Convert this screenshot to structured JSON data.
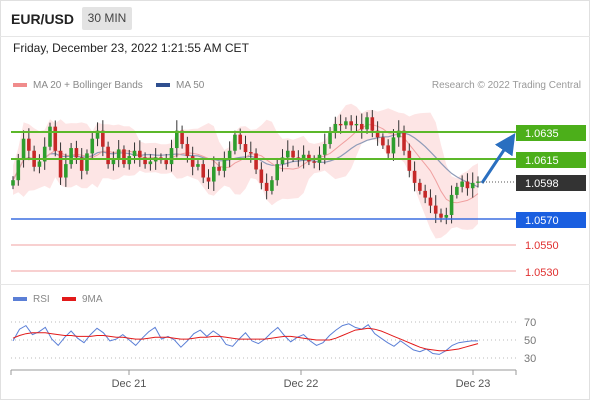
{
  "header": {
    "symbol": "EUR/USD",
    "timeframe": "30 MIN"
  },
  "date": "Friday, December 23, 2022 1:21:55 AM CET",
  "legend": {
    "items": [
      {
        "label": "MA 20 + Bollinger Bands",
        "color": "#f08c8c"
      },
      {
        "label": "MA 50",
        "color": "#2f4f8f"
      }
    ],
    "credit": "Research © 2022 Trading Central"
  },
  "rsi_legend": [
    {
      "label": "RSI",
      "color": "#5b7fd6"
    },
    {
      "label": "9MA",
      "color": "#e21a1a"
    }
  ],
  "levels": [
    {
      "value": "1.0635",
      "style": "box",
      "color": "#4caf1a",
      "kind": "resistance"
    },
    {
      "value": "1.0615",
      "style": "box",
      "color": "#4caf1a",
      "kind": "resistance"
    },
    {
      "value": "1.0598",
      "style": "box",
      "color": "#333333",
      "kind": "last"
    },
    {
      "value": "1.0570",
      "style": "box",
      "color": "#1a5fe0",
      "kind": "pivot"
    },
    {
      "value": "1.0550",
      "style": "text",
      "color": "#e03030",
      "kind": "support"
    },
    {
      "value": "1.0530",
      "style": "text",
      "color": "#e03030",
      "kind": "support"
    }
  ],
  "rsi_ticks": [
    "70",
    "50",
    "30"
  ],
  "x_labels": [
    "Dec 21",
    "Dec 22",
    "Dec 23"
  ],
  "chart_data": [
    {
      "type": "candlestick",
      "title": "EUR/USD 30 MIN",
      "y_range": [
        1.0525,
        1.066
      ],
      "resistances": [
        1.0635,
        1.0615
      ],
      "pivot": 1.057,
      "supports": [
        1.055,
        1.053
      ],
      "last_price": 1.0598,
      "close_path": [
        1.0599,
        1.0614,
        1.063,
        1.0621,
        1.0609,
        1.0613,
        1.0624,
        1.0639,
        1.0621,
        1.0601,
        1.0611,
        1.0623,
        1.0616,
        1.0606,
        1.0619,
        1.063,
        1.0636,
        1.0624,
        1.0611,
        1.0615,
        1.0622,
        1.0611,
        1.0617,
        1.0621,
        1.0616,
        1.0611,
        1.0613,
        1.0616,
        1.0614,
        1.0611,
        1.0623,
        1.0636,
        1.0626,
        1.0617,
        1.0609,
        1.0611,
        1.0601,
        1.0598,
        1.0609,
        1.0606,
        1.0615,
        1.0621,
        1.0633,
        1.0626,
        1.062,
        1.0619,
        1.0607,
        1.0597,
        1.0591,
        1.0599,
        1.0611,
        1.0616,
        1.0621,
        1.0616,
        1.0614,
        1.0618,
        1.0613,
        1.0612,
        1.0618,
        1.0626,
        1.0635,
        1.0641,
        1.064,
        1.0643,
        1.064,
        1.0641,
        1.0637,
        1.0646,
        1.0636,
        1.0631,
        1.0625,
        1.0619,
        1.0631,
        1.0636,
        1.0621,
        1.0606,
        1.0597,
        1.0591,
        1.0586,
        1.058,
        1.0574,
        1.0571,
        1.0573,
        1.0588,
        1.0594,
        1.0598,
        1.0593,
        1.0597,
        1.0598
      ],
      "projection": {
        "from": 1.0598,
        "to": 1.0635
      }
    },
    {
      "type": "line",
      "title": "RSI",
      "y_range": [
        20,
        80
      ],
      "reference_levels": [
        70,
        50,
        30
      ],
      "series": [
        {
          "name": "RSI",
          "values": [
            49,
            62,
            66,
            56,
            59,
            64,
            51,
            44,
            53,
            60,
            52,
            47,
            56,
            63,
            58,
            49,
            51,
            56,
            50,
            44,
            52,
            59,
            64,
            51,
            54,
            50,
            42,
            49,
            57,
            61,
            54,
            60,
            55,
            45,
            43,
            51,
            58,
            49,
            46,
            51,
            58,
            64,
            55,
            48,
            53,
            56,
            49,
            44,
            47,
            55,
            61,
            66,
            68,
            64,
            62,
            67,
            57,
            52,
            47,
            43,
            49,
            44,
            39,
            37,
            40,
            35,
            34,
            38,
            44,
            47,
            48,
            49,
            49
          ]
        },
        {
          "name": "9MA",
          "values": [
            52,
            55,
            57,
            58,
            58,
            58,
            57,
            56,
            55,
            55,
            54,
            54,
            54,
            55,
            55,
            54,
            53,
            53,
            52,
            51,
            51,
            52,
            53,
            53,
            53,
            52,
            51,
            51,
            52,
            53,
            53,
            54,
            54,
            53,
            52,
            51,
            51,
            51,
            51,
            51,
            52,
            53,
            54,
            54,
            53,
            52,
            51,
            50,
            50,
            50,
            52,
            55,
            58,
            61,
            62,
            63,
            62,
            60,
            57,
            54,
            51,
            48,
            45,
            42,
            40,
            39,
            38,
            38,
            39,
            40,
            42,
            44,
            46
          ]
        }
      ]
    }
  ]
}
